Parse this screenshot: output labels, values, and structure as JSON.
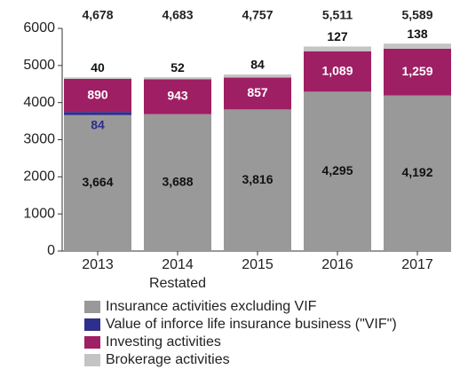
{
  "chart_data": {
    "type": "stacked_bar",
    "categories": [
      "2013",
      "2014",
      "2015",
      "2016",
      "2017"
    ],
    "annotation": "Restated",
    "series": [
      {
        "name": "Insurance activities excluding VIF",
        "color": "#999999",
        "values": [
          3664,
          3688,
          3816,
          4295,
          4192
        ],
        "value_labels": [
          "3,664",
          "3,688",
          "3,816",
          "4,295",
          "4,192"
        ]
      },
      {
        "name": "Value of inforce life insurance business (\"VIF\")",
        "color": "#2e2e8c",
        "values": [
          84,
          null,
          null,
          null,
          null
        ]
      },
      {
        "name": "Investing activities",
        "color": "#9e1f63",
        "values": [
          890,
          943,
          857,
          1089,
          1259
        ],
        "value_labels": [
          "890",
          "943",
          "857",
          "1,089",
          "1,259"
        ]
      },
      {
        "name": "Brokerage activities",
        "color": "#c4c4c4",
        "values": [
          40,
          52,
          84,
          127,
          138
        ]
      }
    ],
    "totals": [
      4678,
      4683,
      4757,
      5511,
      5589
    ],
    "total_labels": [
      "4,678",
      "4,683",
      "4,757",
      "5,511",
      "5,589"
    ],
    "ylim": [
      0,
      6000
    ],
    "yticks": [
      0,
      1000,
      2000,
      3000,
      4000,
      5000,
      6000
    ],
    "grid": false
  }
}
